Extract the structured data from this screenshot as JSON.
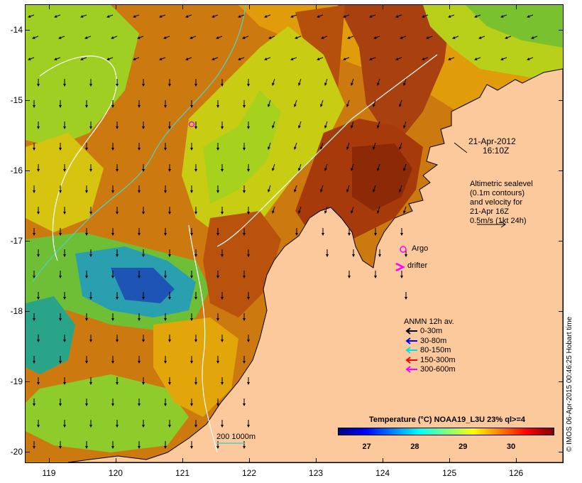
{
  "map": {
    "lon_range": [
      118.65,
      126.7
    ],
    "lat_range": [
      -20.15,
      -13.65
    ],
    "lon_ticks": [
      119,
      120,
      121,
      122,
      123,
      124,
      125,
      126
    ],
    "lat_ticks": [
      -14,
      -15,
      -16,
      -17,
      -18,
      -19,
      -20
    ],
    "land_color": "#fcc99d",
    "sea_palette": [
      "#a63a08",
      "#cc6a0c",
      "#e0a000",
      "#d6c60c",
      "#a8d41a",
      "#6ac12e",
      "#2faf80",
      "#1e7ec8",
      "#1430a0"
    ],
    "altimetry_contour_color": "#ffffff",
    "isobath_color": "#4fd0c8"
  },
  "annotations": {
    "date": "21-Apr-2012",
    "time": "16:10Z",
    "altimetry_lines": [
      "Altimetric sealevel",
      "(0.1m contours)",
      "and velocity for",
      "21-Apr 16Z",
      "0.5m/s (1kt 24h)"
    ],
    "argo_label": "Argo",
    "drifter_label": "drifter",
    "anmn_title": "ANMN 12h av.",
    "isobath_label": "200  1000m",
    "side_credit": "© IMOS 06-Apr-2015 00:46:25 Hobart time"
  },
  "legend": {
    "items": [
      {
        "label": "0-30m",
        "color": "#000000"
      },
      {
        "label": "30-80m",
        "color": "#0000ff"
      },
      {
        "label": "80-150m",
        "color": "#00e0e0"
      },
      {
        "label": "150-300m",
        "color": "#ff0000"
      },
      {
        "label": "300-600m",
        "color": "#ff00ff"
      }
    ]
  },
  "colorbar": {
    "title": "Temperature (°C) NOAA19_L3U 23% ql>=4",
    "ticks": [
      "27",
      "28",
      "29",
      "30"
    ],
    "range": [
      26.4,
      30.9
    ],
    "stops": [
      "#00007f",
      "#0000ff",
      "#007fff",
      "#00ffff",
      "#7fff7f",
      "#ffff00",
      "#ff7f00",
      "#ff0000",
      "#7f0000"
    ]
  }
}
